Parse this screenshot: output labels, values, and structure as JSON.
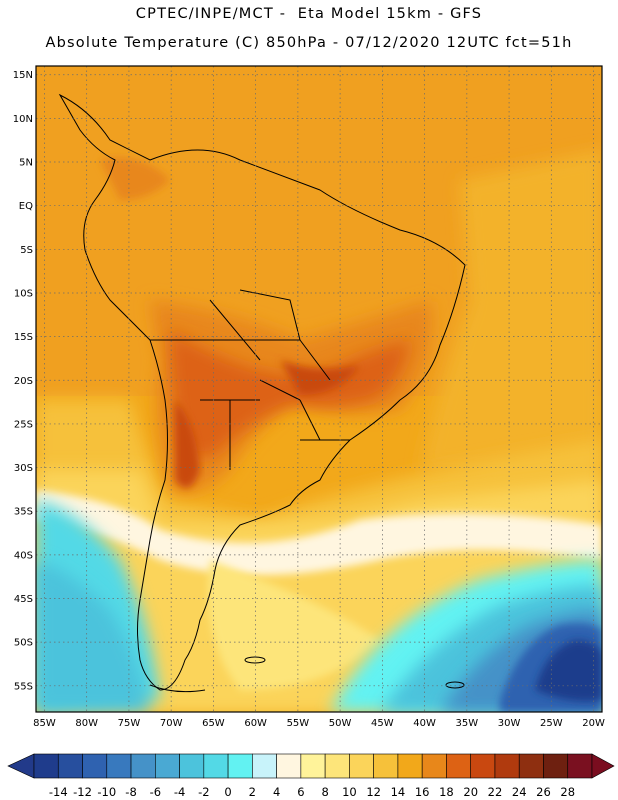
{
  "header": {
    "line1": "CPTEC/INPE/MCT -  Eta Model 15km - GFS",
    "line2": "Absolute Temperature (C) 850hPa - 07/12/2020 12UTC fct=51h"
  },
  "map": {
    "region": "South America",
    "lat_labels": [
      "15N",
      "10N",
      "5N",
      "EQ",
      "5S",
      "10S",
      "15S",
      "20S",
      "25S",
      "30S",
      "35S",
      "40S",
      "45S",
      "50S",
      "55S"
    ],
    "lon_labels": [
      "85W",
      "80W",
      "75W",
      "70W",
      "65W",
      "60W",
      "55W",
      "50W",
      "45W",
      "40W",
      "35W",
      "30W",
      "25W",
      "20W"
    ],
    "lat_values": [
      15,
      10,
      5,
      0,
      -5,
      -10,
      -15,
      -20,
      -25,
      -30,
      -35,
      -40,
      -45,
      -50,
      -55
    ],
    "lon_values": [
      -85,
      -80,
      -75,
      -70,
      -65,
      -60,
      -55,
      -50,
      -45,
      -40,
      -35,
      -30,
      -25,
      -20
    ],
    "lat_range": [
      -58,
      16
    ],
    "lon_range": [
      -86,
      -19
    ],
    "grid": true,
    "grid_style": "dotted"
  },
  "colorbar": {
    "labels": [
      "-14",
      "-12",
      "-10",
      "-8",
      "-6",
      "-4",
      "-2",
      "0",
      "2",
      "4",
      "6",
      "8",
      "10",
      "12",
      "14",
      "16",
      "18",
      "20",
      "22",
      "24",
      "26",
      "28"
    ],
    "colors": [
      "#1f3c8c",
      "#274f9e",
      "#2f62b0",
      "#3879be",
      "#4592c8",
      "#4aa9d3",
      "#4cc3dc",
      "#53d9e6",
      "#62f2f2",
      "#c8f3fa",
      "#fff6e0",
      "#fff39a",
      "#fde57a",
      "#fbd45a",
      "#f6c13a",
      "#f2a81a",
      "#e8871a",
      "#dd6214",
      "#c94810",
      "#b03a0e",
      "#8e2f10",
      "#6e2010",
      "#7a1020"
    ],
    "extend_low_color": "#223a8a",
    "extend_high_color": "#7a0d1f"
  }
}
